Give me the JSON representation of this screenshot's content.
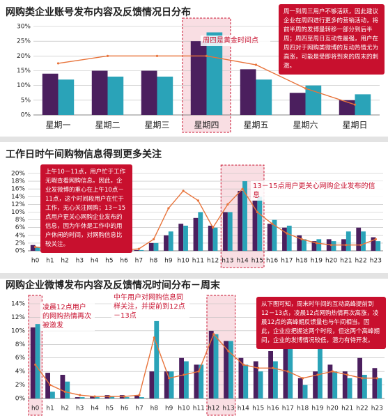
{
  "chart_data": [
    {
      "type": "bar",
      "title": "网购类企业账号发布内容及反馈情况日分布",
      "categories": [
        "星期一",
        "星期二",
        "星期三",
        "星期四",
        "星期五",
        "星期六",
        "星期日"
      ],
      "series": [
        {
          "color": "#4b1f5e",
          "values": [
            14,
            15,
            15,
            25,
            15.5,
            7.5,
            5
          ]
        },
        {
          "color": "#2aa3b8",
          "values": [
            12,
            13,
            13,
            28,
            12,
            10,
            7
          ]
        },
        {
          "type": "line",
          "color": "#e8733a",
          "values": [
            17.5,
            20,
            20,
            20,
            17,
            9,
            3.5
          ]
        }
      ],
      "ylim": [
        0,
        30
      ],
      "yticks": [
        {
          "value": 0,
          "label": "0%"
        },
        {
          "value": 5,
          "label": "5%"
        },
        {
          "value": 10,
          "label": "10%"
        },
        {
          "value": 15,
          "label": "15%"
        },
        {
          "value": 20,
          "label": "20%"
        },
        {
          "value": 25,
          "label": "25%"
        },
        {
          "value": 30,
          "label": "30%"
        }
      ],
      "grid": true,
      "highlight": [
        [
          "星期四",
          "星期四"
        ]
      ],
      "annotations": [
        "周一到周三用户不够活跃，因此建议企业在周四进行更多的营销活动，将前半周的发博量转移一部分到后半周；周四至周日互动性最强，用户在周四对于网购类微博的互动热情尤为高涨，可能是受即将到来的周末的刺激。",
        "周四是黄金时间点"
      ]
    },
    {
      "type": "bar",
      "title": "工作日时午间购物信息得到更多关注",
      "categories": [
        "h0",
        "h1",
        "h2",
        "h3",
        "h4",
        "h5",
        "h6",
        "h7",
        "h8",
        "h9",
        "h10",
        "h11",
        "h12",
        "h13",
        "h14",
        "h15",
        "h16",
        "h17",
        "h18",
        "h19",
        "h20",
        "h21",
        "h22",
        "h23"
      ],
      "series": [
        {
          "color": "#4b1f5e",
          "values": [
            1.5,
            0.5,
            0,
            0,
            0,
            0,
            0,
            0.2,
            2,
            4,
            7,
            8.5,
            6.5,
            10,
            15.5,
            13,
            7,
            6,
            4,
            2.5,
            3,
            3,
            6,
            3.5
          ]
        },
        {
          "color": "#2aa3b8",
          "values": [
            1,
            0.3,
            0,
            0,
            0,
            0,
            0.1,
            0.2,
            2,
            5,
            6.5,
            10,
            6,
            10,
            18,
            14,
            8,
            6.5,
            3,
            3,
            2.5,
            5,
            5,
            2.5
          ]
        },
        {
          "type": "line",
          "color": "#e8733a",
          "values": [
            1,
            0.5,
            0.2,
            0.1,
            0.1,
            0.1,
            0.2,
            0.5,
            3,
            11,
            15.5,
            13,
            6,
            12,
            16,
            10,
            7,
            4.5,
            3,
            2,
            1.5,
            1.5,
            1.5,
            3
          ]
        }
      ],
      "ylim": [
        0,
        20
      ],
      "yticks": [
        {
          "value": 0,
          "label": "0%"
        },
        {
          "value": 2,
          "label": "2%"
        },
        {
          "value": 4,
          "label": "4%"
        },
        {
          "value": 6,
          "label": "6%"
        },
        {
          "value": 8,
          "label": "8%"
        },
        {
          "value": 10,
          "label": "10%"
        },
        {
          "value": 12,
          "label": "12%"
        },
        {
          "value": 14,
          "label": "14%"
        },
        {
          "value": 16,
          "label": "16%"
        },
        {
          "value": 18,
          "label": "18%"
        },
        {
          "value": 20,
          "label": "20%"
        }
      ],
      "grid": true,
      "highlight": [
        [
          "h13",
          "h15"
        ]
      ],
      "annotations": [
        "上午10－11点，用户忙于工作无暇查看网购信息。因此，企业发微博的重心在上午10点－11点，这个时间段用户在忙于工作，无心关注网购；13－15点用户更关心网购企业发布的信息，因为午休是工作中的用户休闲的时间，对网购信息比较关注。",
        "13－15点用户更关心网购企业发布的信息"
      ]
    },
    {
      "type": "bar",
      "title": "网购企业微博发布内容及反馈情况时间分布－周末",
      "categories": [
        "h0",
        "h1",
        "h2",
        "h3",
        "h4",
        "h5",
        "h6",
        "h7",
        "h8",
        "h9",
        "h10",
        "h11",
        "h12",
        "h13",
        "h14",
        "h15",
        "h16",
        "h17",
        "h18",
        "h19",
        "h20",
        "h21",
        "h22",
        "h23"
      ],
      "series": [
        {
          "color": "#4b1f5e",
          "values": [
            10.5,
            3.8,
            3.5,
            0.2,
            0.3,
            0.5,
            0.5,
            0.5,
            4,
            4,
            6,
            5,
            10,
            8.5,
            6,
            5.5,
            7,
            8,
            3,
            4,
            5,
            4,
            6,
            4.5
          ]
        },
        {
          "color": "#2aa3b8",
          "values": [
            11,
            1,
            2.5,
            0.2,
            0.2,
            0.3,
            0.2,
            0.2,
            11.5,
            4,
            5.5,
            5,
            9.5,
            8.5,
            5,
            4,
            5.5,
            8,
            2,
            9.5,
            4,
            3,
            3.5,
            3
          ]
        },
        {
          "type": "line",
          "color": "#e8733a",
          "values": [
            5,
            2,
            1,
            0.5,
            0.3,
            0.3,
            0.3,
            0.5,
            9,
            3,
            3.5,
            4,
            9.5,
            7,
            5,
            4.5,
            4.5,
            4,
            3,
            3.5,
            4,
            3.5,
            3,
            3
          ]
        }
      ],
      "ylim": [
        0,
        14
      ],
      "yticks": [
        {
          "value": 0,
          "label": "0%"
        },
        {
          "value": 2,
          "label": "2%"
        },
        {
          "value": 4,
          "label": "4%"
        },
        {
          "value": 6,
          "label": "6%"
        },
        {
          "value": 8,
          "label": "8%"
        },
        {
          "value": 10,
          "label": "10%"
        },
        {
          "value": 12,
          "label": "12%"
        },
        {
          "value": 14,
          "label": "14%"
        }
      ],
      "grid": true,
      "highlight": [
        [
          "h0",
          "h0"
        ],
        [
          "h12",
          "h13"
        ]
      ],
      "annotations": [
        "从下图可知，周末时午间的互动高峰提前到12－13点，凌晨12点网购热情再次高涨，凌晨12点的高峰期反馈量也与午间相当。因此，企业应把握这两个时段，但这两个高峰期间，企业的发博情况较低，潜力有待开发。",
        "凌晨12点用户的网购热情再次被激发",
        "中午用户对网购信息同样关注，并提前到12点－13点"
      ]
    }
  ]
}
